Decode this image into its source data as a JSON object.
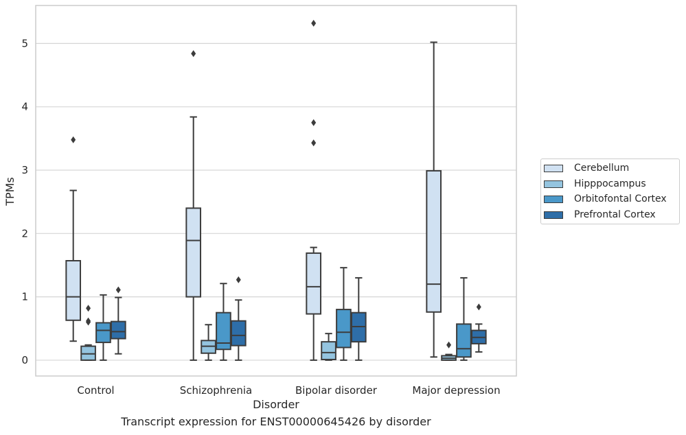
{
  "chart_data": {
    "type": "box",
    "title": "",
    "xlabel": "Disorder",
    "ylabel": "TPMs",
    "caption": "Transcript expression for ENST00000645426 by disorder",
    "ylim": [
      -0.25,
      5.6
    ],
    "yticks": [
      0,
      1,
      2,
      3,
      4,
      5
    ],
    "grid": "horizontal",
    "legend_position": "right",
    "categories": [
      "Control",
      "Schizophrenia",
      "Bipolar disorder",
      "Major depression"
    ],
    "series": [
      {
        "name": "Cerebellum",
        "color": "#d0e1f2",
        "boxes": [
          {
            "whislo": 0.3,
            "q1": 0.63,
            "med": 1.0,
            "q3": 1.57,
            "whishi": 2.68,
            "fliers": [
              3.48
            ]
          },
          {
            "whislo": 0.0,
            "q1": 1.0,
            "med": 1.89,
            "q3": 2.4,
            "whishi": 3.84,
            "fliers": [
              4.84
            ]
          },
          {
            "whislo": 0.0,
            "q1": 0.73,
            "med": 1.16,
            "q3": 1.69,
            "whishi": 1.78,
            "fliers": [
              3.43,
              3.75,
              5.32
            ]
          },
          {
            "whislo": 0.05,
            "q1": 0.76,
            "med": 1.2,
            "q3": 2.99,
            "whishi": 5.02,
            "fliers": []
          }
        ]
      },
      {
        "name": "Hipppocampus",
        "color": "#94c4df",
        "boxes": [
          {
            "whislo": 0.0,
            "q1": 0.0,
            "med": 0.1,
            "q3": 0.22,
            "whishi": 0.24,
            "fliers": [
              0.6,
              0.62,
              0.82
            ]
          },
          {
            "whislo": 0.0,
            "q1": 0.11,
            "med": 0.22,
            "q3": 0.31,
            "whishi": 0.56,
            "fliers": []
          },
          {
            "whislo": 0.0,
            "q1": 0.01,
            "med": 0.12,
            "q3": 0.29,
            "whishi": 0.42,
            "fliers": []
          },
          {
            "whislo": 0.0,
            "q1": 0.0,
            "med": 0.03,
            "q3": 0.07,
            "whishi": 0.09,
            "fliers": [
              0.24
            ]
          }
        ]
      },
      {
        "name": "Orbitofontal Cortex",
        "color": "#4a98c9",
        "boxes": [
          {
            "whislo": 0.0,
            "q1": 0.28,
            "med": 0.47,
            "q3": 0.59,
            "whishi": 1.03,
            "fliers": []
          },
          {
            "whislo": 0.0,
            "q1": 0.17,
            "med": 0.27,
            "q3": 0.75,
            "whishi": 1.21,
            "fliers": []
          },
          {
            "whislo": 0.0,
            "q1": 0.2,
            "med": 0.44,
            "q3": 0.8,
            "whishi": 1.46,
            "fliers": []
          },
          {
            "whislo": 0.0,
            "q1": 0.05,
            "med": 0.18,
            "q3": 0.57,
            "whishi": 1.3,
            "fliers": []
          }
        ]
      },
      {
        "name": "Prefrontal Cortex",
        "color": "#2e6ea8",
        "boxes": [
          {
            "whislo": 0.1,
            "q1": 0.34,
            "med": 0.45,
            "q3": 0.61,
            "whishi": 0.99,
            "fliers": [
              1.11
            ]
          },
          {
            "whislo": 0.0,
            "q1": 0.23,
            "med": 0.39,
            "q3": 0.62,
            "whishi": 0.95,
            "fliers": [
              1.27
            ]
          },
          {
            "whislo": 0.0,
            "q1": 0.29,
            "med": 0.53,
            "q3": 0.75,
            "whishi": 1.3,
            "fliers": []
          },
          {
            "whislo": 0.13,
            "q1": 0.26,
            "med": 0.36,
            "q3": 0.47,
            "whishi": 0.57,
            "fliers": [
              0.84
            ]
          }
        ]
      }
    ]
  }
}
